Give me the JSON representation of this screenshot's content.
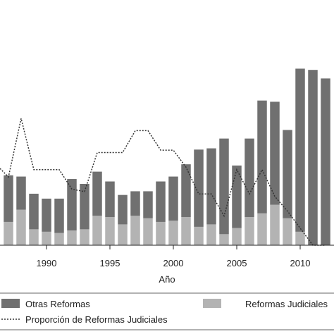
{
  "chart_data": {
    "type": "bar",
    "stacked": true,
    "categories": [
      "1987",
      "1988",
      "1989",
      "1990",
      "1991",
      "1992",
      "1993",
      "1994",
      "1995",
      "1996",
      "1997",
      "1998",
      "1999",
      "2000",
      "2001",
      "2002",
      "2003",
      "2004",
      "2005",
      "2006",
      "2007",
      "2008",
      "2009",
      "2010",
      "2011",
      "2012"
    ],
    "xlabel": "Año",
    "x_ticks": [
      "1990",
      "1995",
      "2000",
      "2005",
      "2010"
    ],
    "series": [
      {
        "name": "Reformas Judiciales",
        "kind": "bar",
        "color": "#b3b3b3",
        "values": [
          19,
          29,
          13,
          11,
          10,
          12,
          13,
          24,
          23,
          17,
          24,
          22,
          19,
          20,
          23,
          15,
          17,
          9,
          14,
          23,
          26,
          33,
          22,
          11,
          0,
          0
        ]
      },
      {
        "name": "Otras Reformas",
        "kind": "bar",
        "color": "#707070",
        "values": [
          38,
          27,
          29,
          27,
          28,
          42,
          37,
          36,
          29,
          24,
          20,
          22,
          33,
          36,
          43,
          63,
          62,
          78,
          51,
          64,
          92,
          84,
          72,
          133,
          143,
          136
        ]
      },
      {
        "name": "Proporción de Reformas Judiciales",
        "kind": "line",
        "style": "dotted",
        "color": "#333333",
        "values": [
          0.28,
          0.52,
          0.31,
          0.31,
          0.31,
          0.23,
          0.22,
          0.38,
          0.38,
          0.38,
          0.47,
          0.47,
          0.39,
          0.39,
          0.32,
          0.21,
          0.21,
          0.12,
          0.31,
          0.21,
          0.31,
          0.2,
          0.14,
          0.07,
          0.0,
          0.0
        ]
      }
    ],
    "legend": {
      "placement": "bottom",
      "items": [
        {
          "label": "Otras Reformas",
          "swatch": "bar",
          "color": "#707070"
        },
        {
          "label": "Reformas Judiciales",
          "swatch": "bar",
          "color": "#b3b3b3"
        },
        {
          "label": "Proporción de Reformas Judiciales",
          "swatch": "dotted-line",
          "color": "#333333"
        }
      ]
    },
    "grid": false
  }
}
